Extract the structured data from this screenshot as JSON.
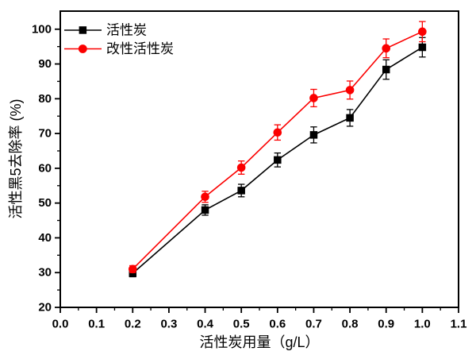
{
  "chart_data": {
    "type": "line",
    "title": "",
    "xlabel": "活性炭用量（g/L）",
    "ylabel": "活性黑5去除率 (%)",
    "xlim": [
      0.0,
      1.1
    ],
    "ylim": [
      20,
      105.2
    ],
    "grid": false,
    "legend_position": "top-left-inside",
    "background_color": "#ffffff",
    "axis_color": "#000000",
    "x": [
      0.2,
      0.4,
      0.5,
      0.6,
      0.7,
      0.8,
      0.9,
      1.0
    ],
    "series": [
      {
        "name": "活性炭",
        "color": "#000000",
        "marker": "square",
        "y": [
          29.8,
          48.0,
          53.6,
          62.4,
          69.6,
          74.5,
          88.4,
          94.8
        ],
        "yerr": [
          1.0,
          1.5,
          1.8,
          2.0,
          2.3,
          2.4,
          2.8,
          2.8
        ]
      },
      {
        "name": "改性活性炭",
        "color": "#fb0000",
        "marker": "circle",
        "y": [
          31.0,
          51.8,
          60.2,
          70.3,
          80.2,
          82.5,
          94.5,
          99.3
        ],
        "yerr": [
          1.0,
          1.6,
          1.9,
          2.2,
          2.5,
          2.6,
          2.7,
          2.9
        ]
      }
    ],
    "x_tick_values": [
      0.0,
      0.1,
      0.2,
      0.3,
      0.4,
      0.5,
      0.6,
      0.7,
      0.8,
      0.9,
      1.0,
      1.1
    ],
    "x_tick_labels": [
      "0.0",
      "0.1",
      "0.2",
      "0.3",
      "0.4",
      "0.5",
      "0.6",
      "0.7",
      "0.8",
      "0.9",
      "1.0",
      "1.1"
    ],
    "x_minor_tick_values": [
      0.05,
      0.15,
      0.25,
      0.35,
      0.45,
      0.55,
      0.65,
      0.75,
      0.85,
      0.95,
      1.05
    ],
    "y_tick_values": [
      20,
      30,
      40,
      50,
      60,
      70,
      80,
      90,
      100
    ],
    "y_tick_labels": [
      "20",
      "30",
      "40",
      "50",
      "60",
      "70",
      "80",
      "90",
      "100"
    ],
    "y_minor_tick_values": [
      25,
      35,
      45,
      55,
      65,
      75,
      85,
      95
    ]
  }
}
